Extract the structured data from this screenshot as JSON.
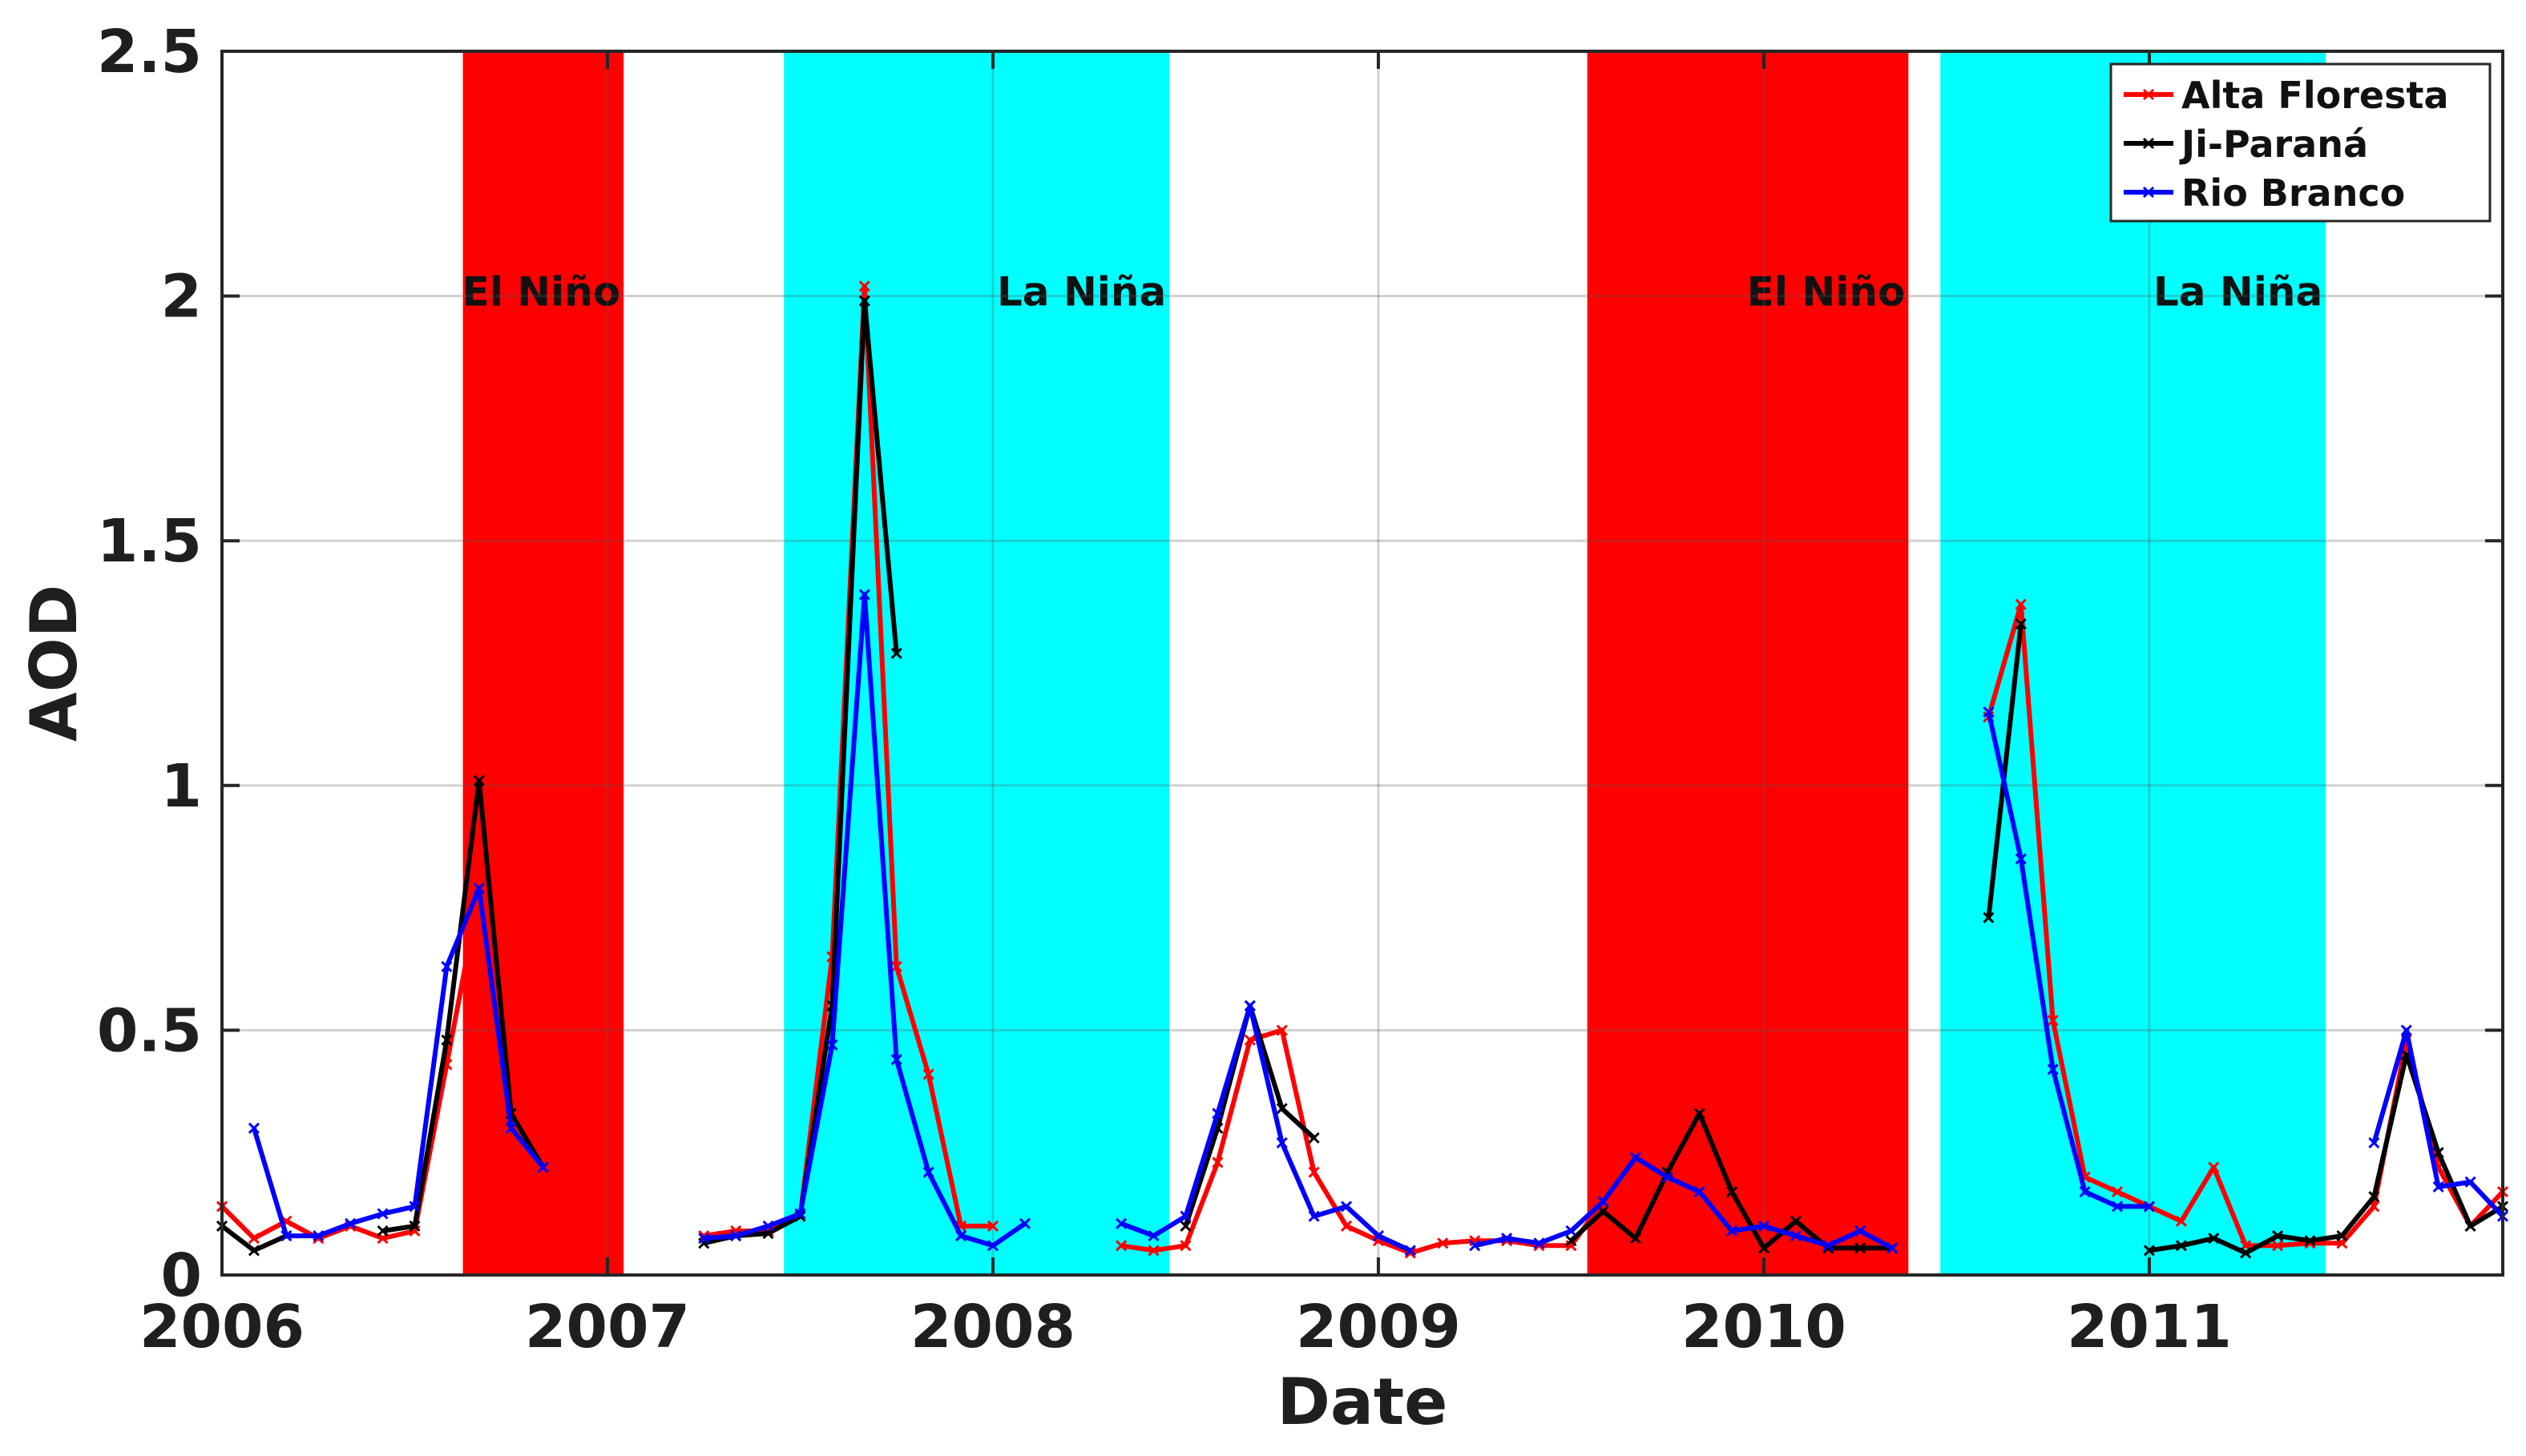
{
  "chart_data": {
    "type": "line",
    "title": "",
    "xlabel": "Date",
    "ylabel": "AOD",
    "xlim": [
      2006.0,
      2011.917
    ],
    "ylim": [
      0,
      2.5
    ],
    "grid": true,
    "legend_position": "top-right",
    "x_ticks": [
      {
        "value": 2006,
        "label": "2006"
      },
      {
        "value": 2007,
        "label": "2007"
      },
      {
        "value": 2008,
        "label": "2008"
      },
      {
        "value": 2009,
        "label": "2009"
      },
      {
        "value": 2010,
        "label": "2010"
      },
      {
        "value": 2011,
        "label": "2011"
      }
    ],
    "y_ticks": [
      {
        "value": 0,
        "label": "0"
      },
      {
        "value": 0.5,
        "label": "0.5"
      },
      {
        "value": 1,
        "label": "1"
      },
      {
        "value": 1.5,
        "label": "1.5"
      },
      {
        "value": 2,
        "label": "2"
      },
      {
        "value": 2.5,
        "label": "2.5"
      }
    ],
    "periods": [
      {
        "label": "El Niño",
        "start": 2006.625,
        "end": 2007.042,
        "color": "#ff0000"
      },
      {
        "label": "La Niña",
        "start": 2007.458,
        "end": 2008.458,
        "color": "#00ffff"
      },
      {
        "label": "El Niño",
        "start": 2009.542,
        "end": 2010.375,
        "color": "#ff0000"
      },
      {
        "label": "La Niña",
        "start": 2010.458,
        "end": 2011.458,
        "color": "#00ffff"
      }
    ],
    "series": [
      {
        "name": "Alta Floresta",
        "color": "#ff0000",
        "points": [
          [
            [
              2006.0,
              0.14
            ],
            [
              2006.083,
              0.075
            ],
            [
              2006.167,
              0.11
            ],
            [
              2006.25,
              0.075
            ],
            [
              2006.333,
              0.1
            ],
            [
              2006.417,
              0.075
            ],
            [
              2006.5,
              0.09
            ],
            [
              2006.583,
              0.43
            ],
            [
              2006.667,
              0.78
            ],
            [
              2006.75,
              0.32
            ],
            [
              2006.833,
              0.23
            ]
          ],
          [
            [
              2007.25,
              0.08
            ],
            [
              2007.333,
              0.09
            ],
            [
              2007.417,
              0.09
            ],
            [
              2007.5,
              0.12
            ],
            [
              2007.583,
              0.65
            ],
            [
              2007.667,
              2.02
            ],
            [
              2007.75,
              0.63
            ],
            [
              2007.833,
              0.41
            ],
            [
              2007.917,
              0.1
            ],
            [
              2008.0,
              0.1
            ]
          ],
          [
            [
              2008.333,
              0.06
            ],
            [
              2008.417,
              0.05
            ],
            [
              2008.5,
              0.06
            ],
            [
              2008.583,
              0.23
            ],
            [
              2008.667,
              0.48
            ],
            [
              2008.75,
              0.5
            ],
            [
              2008.833,
              0.21
            ],
            [
              2008.917,
              0.1
            ],
            [
              2009.0,
              0.07
            ],
            [
              2009.083,
              0.045
            ],
            [
              2009.167,
              0.065
            ],
            [
              2009.25,
              0.07
            ],
            [
              2009.333,
              0.07
            ],
            [
              2009.417,
              0.06
            ],
            [
              2009.5,
              0.06
            ],
            [
              2009.583,
              0.15
            ],
            [
              2009.667,
              0.24
            ],
            [
              2009.75,
              0.2
            ],
            [
              2009.833,
              0.17
            ],
            [
              2009.917,
              0.09
            ],
            [
              2010.0,
              0.09
            ],
            [
              2010.083,
              0.09
            ],
            [
              2010.167,
              0.05
            ],
            [
              2010.25,
              0.09
            ],
            [
              2010.333,
              0.05
            ]
          ],
          [
            [
              2010.583,
              1.14
            ],
            [
              2010.667,
              1.37
            ],
            [
              2010.75,
              0.52
            ],
            [
              2010.833,
              0.2
            ],
            [
              2010.917,
              0.17
            ],
            [
              2011.0,
              0.14
            ],
            [
              2011.083,
              0.11
            ],
            [
              2011.167,
              0.22
            ],
            [
              2011.25,
              0.06
            ],
            [
              2011.333,
              0.06
            ],
            [
              2011.417,
              0.065
            ],
            [
              2011.5,
              0.065
            ],
            [
              2011.583,
              0.14
            ],
            [
              2011.667,
              0.48
            ],
            [
              2011.75,
              0.22
            ],
            [
              2011.833,
              0.1
            ],
            [
              2011.917,
              0.17
            ]
          ]
        ]
      },
      {
        "name": "Ji-Paraná",
        "color": "#000000",
        "points": [
          [
            [
              2006.0,
              0.1
            ],
            [
              2006.083,
              0.05
            ],
            [
              2006.167,
              0.08
            ]
          ],
          [
            [
              2006.417,
              0.09
            ],
            [
              2006.5,
              0.1
            ],
            [
              2006.583,
              0.48
            ],
            [
              2006.667,
              1.01
            ],
            [
              2006.75,
              0.33
            ],
            [
              2006.833,
              0.22
            ]
          ],
          [
            [
              2007.25,
              0.065
            ],
            [
              2007.333,
              0.08
            ],
            [
              2007.417,
              0.085
            ],
            [
              2007.5,
              0.12
            ],
            [
              2007.583,
              0.55
            ],
            [
              2007.667,
              1.99
            ],
            [
              2007.75,
              1.27
            ]
          ],
          [
            [
              2008.5,
              0.1
            ],
            [
              2008.583,
              0.3
            ],
            [
              2008.667,
              0.55
            ],
            [
              2008.75,
              0.34
            ],
            [
              2008.833,
              0.28
            ]
          ],
          [
            [
              2009.5,
              0.07
            ],
            [
              2009.583,
              0.13
            ],
            [
              2009.667,
              0.075
            ],
            [
              2009.75,
              0.21
            ],
            [
              2009.833,
              0.33
            ],
            [
              2009.917,
              0.17
            ],
            [
              2010.0,
              0.055
            ],
            [
              2010.083,
              0.11
            ],
            [
              2010.167,
              0.055
            ],
            [
              2010.25,
              0.055
            ],
            [
              2010.333,
              0.055
            ]
          ],
          [
            [
              2010.583,
              0.73
            ],
            [
              2010.667,
              1.33
            ]
          ],
          [
            [
              2011.0,
              0.05
            ],
            [
              2011.083,
              0.06
            ],
            [
              2011.167,
              0.075
            ],
            [
              2011.25,
              0.045
            ],
            [
              2011.333,
              0.08
            ],
            [
              2011.417,
              0.07
            ],
            [
              2011.5,
              0.08
            ],
            [
              2011.583,
              0.16
            ],
            [
              2011.667,
              0.45
            ],
            [
              2011.75,
              0.25
            ],
            [
              2011.833,
              0.1
            ],
            [
              2011.917,
              0.14
            ]
          ]
        ]
      },
      {
        "name": "Rio Branco",
        "color": "#0000ff",
        "points": [
          [
            [
              2006.083,
              0.3
            ],
            [
              2006.167,
              0.08
            ],
            [
              2006.25,
              0.08
            ],
            [
              2006.333,
              0.105
            ],
            [
              2006.417,
              0.125
            ],
            [
              2006.5,
              0.14
            ],
            [
              2006.583,
              0.63
            ],
            [
              2006.667,
              0.79
            ],
            [
              2006.75,
              0.3
            ],
            [
              2006.833,
              0.22
            ]
          ],
          [
            [
              2007.25,
              0.075
            ],
            [
              2007.333,
              0.08
            ],
            [
              2007.417,
              0.1
            ],
            [
              2007.5,
              0.125
            ],
            [
              2007.583,
              0.47
            ],
            [
              2007.667,
              1.39
            ],
            [
              2007.75,
              0.44
            ],
            [
              2007.833,
              0.21
            ],
            [
              2007.917,
              0.08
            ],
            [
              2008.0,
              0.06
            ],
            [
              2008.083,
              0.105
            ]
          ],
          [
            [
              2008.333,
              0.105
            ],
            [
              2008.417,
              0.08
            ],
            [
              2008.5,
              0.12
            ],
            [
              2008.583,
              0.33
            ],
            [
              2008.667,
              0.55
            ],
            [
              2008.75,
              0.27
            ],
            [
              2008.833,
              0.12
            ],
            [
              2008.917,
              0.14
            ],
            [
              2009.0,
              0.08
            ],
            [
              2009.083,
              0.05
            ]
          ],
          [
            [
              2009.25,
              0.06
            ],
            [
              2009.333,
              0.075
            ],
            [
              2009.417,
              0.065
            ],
            [
              2009.5,
              0.09
            ],
            [
              2009.583,
              0.15
            ],
            [
              2009.667,
              0.24
            ],
            [
              2009.75,
              0.2
            ],
            [
              2009.833,
              0.17
            ],
            [
              2009.917,
              0.09
            ],
            [
              2010.0,
              0.1
            ],
            [
              2010.083,
              0.08
            ],
            [
              2010.167,
              0.06
            ],
            [
              2010.25,
              0.09
            ],
            [
              2010.333,
              0.055
            ]
          ],
          [
            [
              2010.583,
              1.15
            ],
            [
              2010.667,
              0.85
            ],
            [
              2010.75,
              0.42
            ],
            [
              2010.833,
              0.17
            ],
            [
              2010.917,
              0.14
            ],
            [
              2011.0,
              0.14
            ]
          ],
          [
            [
              2011.583,
              0.27
            ],
            [
              2011.667,
              0.5
            ],
            [
              2011.75,
              0.18
            ],
            [
              2011.833,
              0.19
            ],
            [
              2011.917,
              0.12
            ]
          ]
        ]
      }
    ]
  }
}
